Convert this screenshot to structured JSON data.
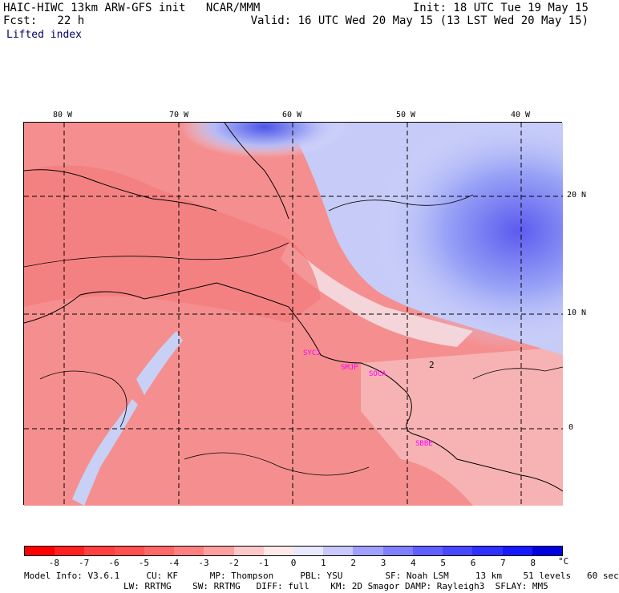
{
  "header": {
    "line1_left": "HAIC-HIWC 13km ARW-GFS init   NCAR/MMM",
    "line1_right": "Init: 18 UTC Tue 19 May 15",
    "line2_left": "Fcst:   22 h",
    "line2_right": "Valid: 16 UTC Wed 20 May 15 (13 LST Wed 20 May 15)",
    "field_name": "Lifted index"
  },
  "lon_labels": [
    "80 W",
    "70 W",
    "60 W",
    "50 W",
    "40 W"
  ],
  "lat_labels": [
    "20 N",
    "10 N",
    "0"
  ],
  "contour_label": "2",
  "stations": [
    "SYCJ",
    "SMJP",
    "SOCA",
    "SBBE"
  ],
  "colorbar": {
    "ticks": [
      "-8",
      "-7",
      "-6",
      "-5",
      "-4",
      "-3",
      "-2",
      "-1",
      "0",
      "1",
      "2",
      "3",
      "4",
      "5",
      "6",
      "7",
      "8"
    ],
    "unit": "°C",
    "colors": [
      "#ff0000",
      "#ff2020",
      "#ff4040",
      "#ff5050",
      "#ff6868",
      "#ff8080",
      "#ffa0a0",
      "#ffc8c8",
      "#ffe8e8",
      "#e8e8ff",
      "#c8c8ff",
      "#a0a0ff",
      "#8080ff",
      "#6060ff",
      "#4848ff",
      "#3030ff",
      "#1818ff",
      "#0000e0"
    ]
  },
  "model_info": {
    "line1": "Model Info: V3.6.1     CU: KF      MP: Thompson     PBL: YSU        SF: Noah LSM     13 km    51 levels   60 sec",
    "line2": "LW: RRTMG    SW: RRTMG   DIFF: full    KM: 2D Smagor DAMP: Rayleigh3  SFLAY: MM5"
  }
}
